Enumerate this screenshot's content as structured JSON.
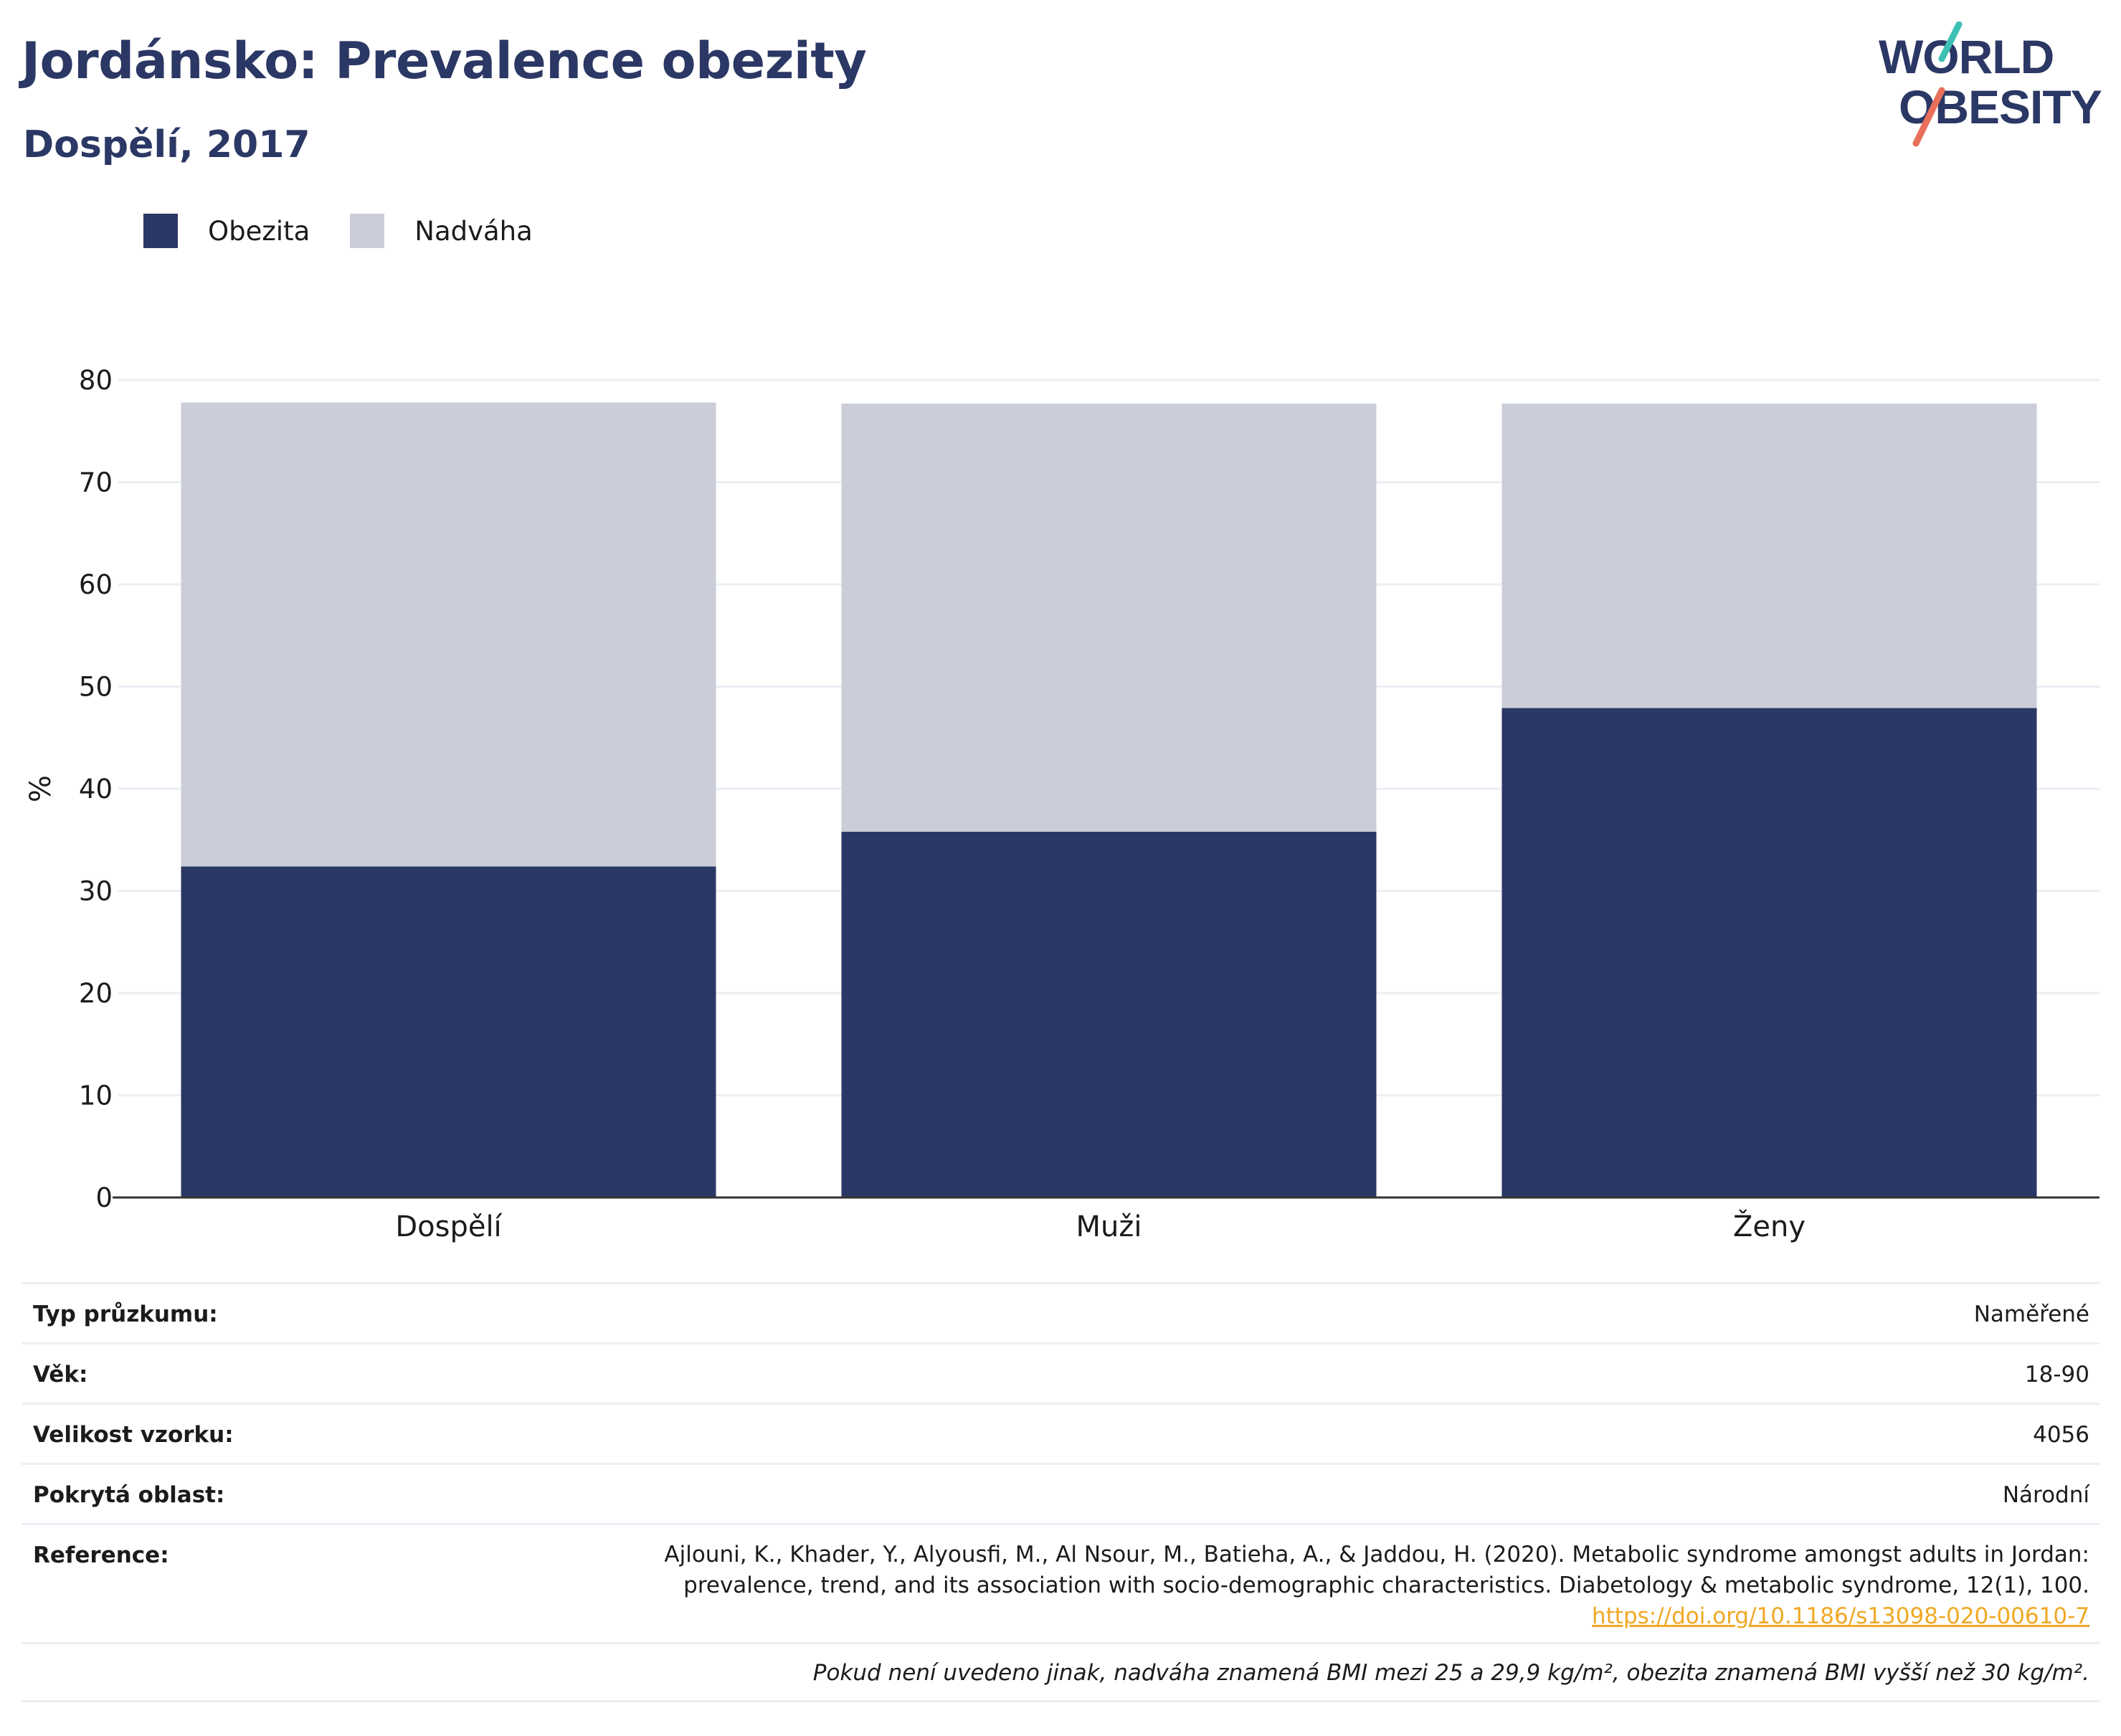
{
  "header": {
    "title": "Jordánsko: Prevalence obezity",
    "subtitle": "Dospělí, 2017"
  },
  "logo": {
    "line1": "WORLD",
    "line2": "OBESITY",
    "slash_colors": [
      "#3ec1b4",
      "#e8705b"
    ],
    "text_color": "#2b3764"
  },
  "colors": {
    "obesity": "#2b3764",
    "overweight": "#cbcdd8",
    "grid": "#ebeef4",
    "axis": "#333333"
  },
  "legend": [
    {
      "label": "Obezita",
      "color": "#2b3764"
    },
    {
      "label": "Nadváha",
      "color": "#cbcdd8"
    }
  ],
  "chart_data": {
    "type": "bar",
    "stacked": true,
    "categories": [
      "Dospělí",
      "Muži",
      "Ženy"
    ],
    "series": [
      {
        "name": "Obezita",
        "values": [
          32.4,
          35.8,
          47.9
        ]
      },
      {
        "name": "Nadváha",
        "values": [
          45.4,
          41.9,
          29.8
        ]
      }
    ],
    "title": "Jordánsko: Prevalence obezity",
    "subtitle": "Dospělí, 2017",
    "xlabel": "",
    "ylabel": "%",
    "ylim": [
      0,
      80
    ],
    "yticks": [
      0,
      10,
      20,
      30,
      40,
      50,
      60,
      70,
      80
    ],
    "grid": true,
    "legend_position": "top-left"
  },
  "info": {
    "rows": [
      {
        "label": "Typ průzkumu:",
        "value": "Naměřené"
      },
      {
        "label": "Věk:",
        "value": "18-90"
      },
      {
        "label": "Velikost vzorku:",
        "value": "4056"
      },
      {
        "label": "Pokrytá oblast:",
        "value": "Národní"
      }
    ],
    "reference_label": "Reference:",
    "reference_line1": "Ajlouni, K., Khader, Y., Alyousfi, M., Al Nsour, M., Batieha, A., & Jaddou, H. (2020). Metabolic syndrome amongst adults in Jordan:",
    "reference_line2": "prevalence, trend, and its association with socio-demographic characteristics. Diabetology & metabolic syndrome, 12(1), 100.",
    "reference_link": "https://doi.org/10.1186/s13098-020-00610-7",
    "note": "Pokud není uvedeno jinak, nadváha znamená BMI mezi 25 a 29,9 kg/m², obezita znamená BMI vyšší než 30 kg/m²."
  }
}
